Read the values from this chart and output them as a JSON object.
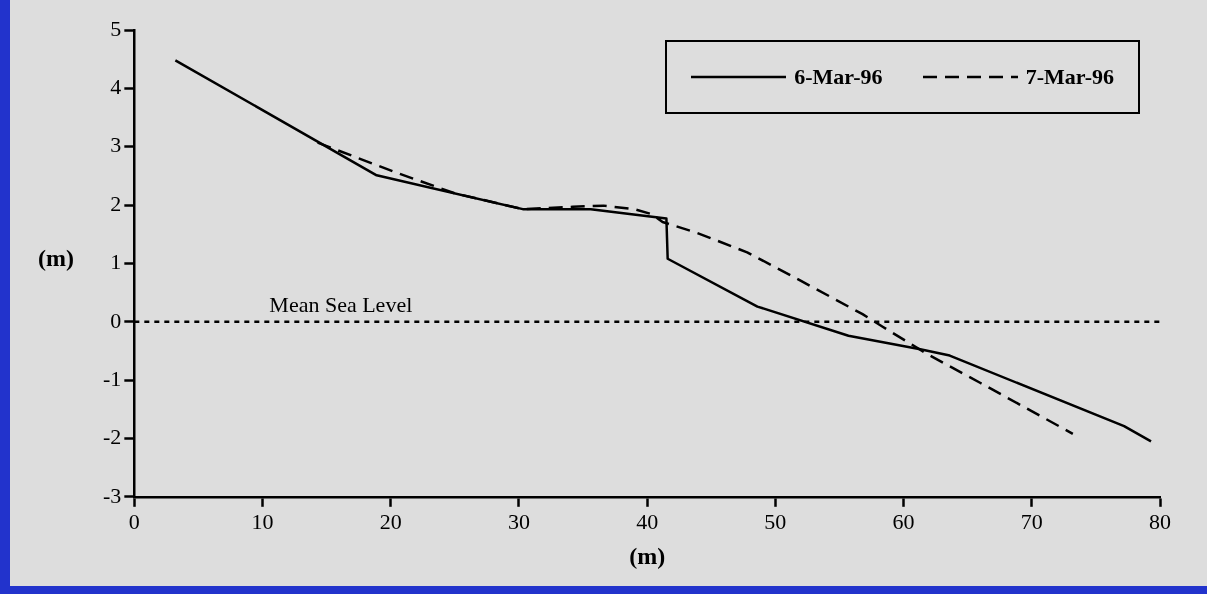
{
  "chart_data": {
    "type": "line",
    "xlabel": "(m)",
    "ylabel": "(m)",
    "xlim": [
      0,
      80
    ],
    "ylim": [
      -3,
      5
    ],
    "xticks": [
      0,
      10,
      20,
      30,
      40,
      50,
      60,
      70,
      80
    ],
    "yticks": [
      -3,
      -2,
      -1,
      0,
      1,
      2,
      3,
      4,
      5
    ],
    "grid": false,
    "legend": "top right",
    "marker": "none",
    "series": [
      {
        "name": "6-Mar-96",
        "color": "#000000",
        "line_style": "solid",
        "x": [
          3.2,
          18.9,
          30.3,
          35.6,
          41.5,
          41.6,
          48.6,
          55.7,
          61.3,
          63.6,
          77.2,
          79.3
        ],
        "values": [
          4.48,
          2.51,
          1.93,
          1.93,
          1.77,
          1.08,
          0.26,
          -0.24,
          -0.47,
          -0.58,
          -1.79,
          -2.05
        ]
      },
      {
        "name": "7-Mar-96",
        "color": "#000000",
        "line_style": "dashed",
        "x": [
          14.3,
          20.5,
          25,
          30.3,
          34.2,
          36.6,
          39,
          40.4,
          41.2,
          43.8,
          47.8,
          52,
          56.8,
          58.4,
          61.9,
          66,
          73.2
        ],
        "values": [
          3.07,
          2.55,
          2.2,
          1.93,
          1.97,
          1.99,
          1.93,
          1.84,
          1.71,
          1.53,
          1.19,
          0.7,
          0.13,
          -0.09,
          -0.56,
          -1.05,
          -1.92
        ]
      }
    ],
    "ref_lines": [
      {
        "axis": "y",
        "value": 0,
        "label": "Mean Sea Level",
        "color": "#000000",
        "line_style": "dotted"
      }
    ]
  }
}
